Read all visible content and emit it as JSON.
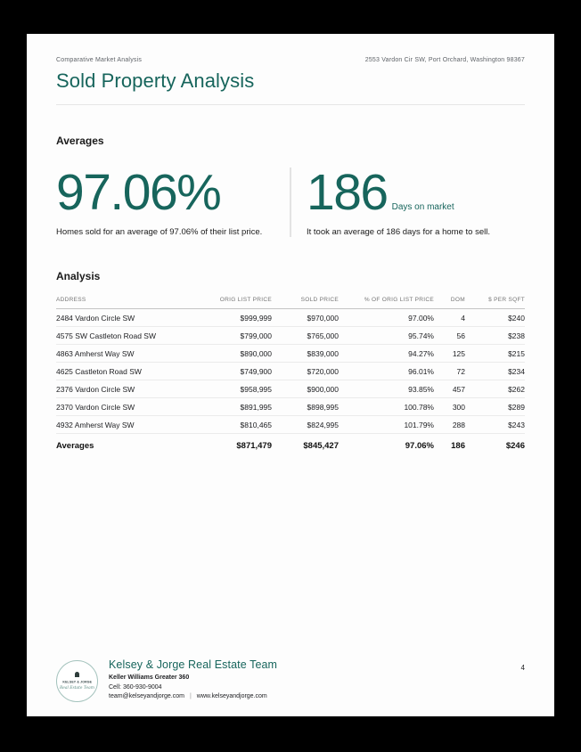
{
  "header": {
    "doc_type": "Comparative Market Analysis",
    "subject_address": "2553 Vardon Cir SW, Port Orchard, Washington 98367",
    "title": "Sold Property Analysis"
  },
  "averages": {
    "heading": "Averages",
    "stats": [
      {
        "value": "97.06%",
        "label": "",
        "caption": "Homes sold for an average of 97.06% of their list price."
      },
      {
        "value": "186",
        "label": "Days on market",
        "caption": "It took an average of 186 days for a home to sell."
      }
    ]
  },
  "analysis": {
    "heading": "Analysis",
    "table": {
      "columns": [
        "ADDRESS",
        "ORIG LIST PRICE",
        "SOLD PRICE",
        "% OF ORIG LIST PRICE",
        "DOM",
        "$ PER SQFT"
      ],
      "rows": [
        [
          "2484 Vardon Circle SW",
          "$999,999",
          "$970,000",
          "97.00%",
          "4",
          "$240"
        ],
        [
          "4575 SW Castleton Road SW",
          "$799,000",
          "$765,000",
          "95.74%",
          "56",
          "$238"
        ],
        [
          "4863 Amherst Way SW",
          "$890,000",
          "$839,000",
          "94.27%",
          "125",
          "$215"
        ],
        [
          "4625 Castleton Road SW",
          "$749,900",
          "$720,000",
          "96.01%",
          "72",
          "$234"
        ],
        [
          "2376 Vardon Circle SW",
          "$958,995",
          "$900,000",
          "93.85%",
          "457",
          "$262"
        ],
        [
          "2370 Vardon Circle SW",
          "$891,995",
          "$898,995",
          "100.78%",
          "300",
          "$289"
        ],
        [
          "4932 Amherst Way SW",
          "$810,465",
          "$824,995",
          "101.79%",
          "288",
          "$243"
        ]
      ],
      "averages_row": [
        "Averages",
        "$871,479",
        "$845,427",
        "97.06%",
        "186",
        "$246"
      ]
    }
  },
  "footer": {
    "logo_name": "KELSEY & JORGE",
    "logo_script": "Real Estate Team",
    "team_name": "Kelsey & Jorge Real Estate Team",
    "brokerage": "Keller Williams Greater 360",
    "cell": "Cell: 360-930-9004",
    "email": "team@kelseyandjorge.com",
    "separator": "|",
    "website": "www.kelseyandjorge.com",
    "page_number": "4"
  },
  "colors": {
    "accent_teal": "#17655c",
    "muted_gray": "#5f6368",
    "table_header_gray": "#757575",
    "row_border": "#ebebeb",
    "page_background": "#fdfdfd",
    "frame_background": "#000000"
  }
}
